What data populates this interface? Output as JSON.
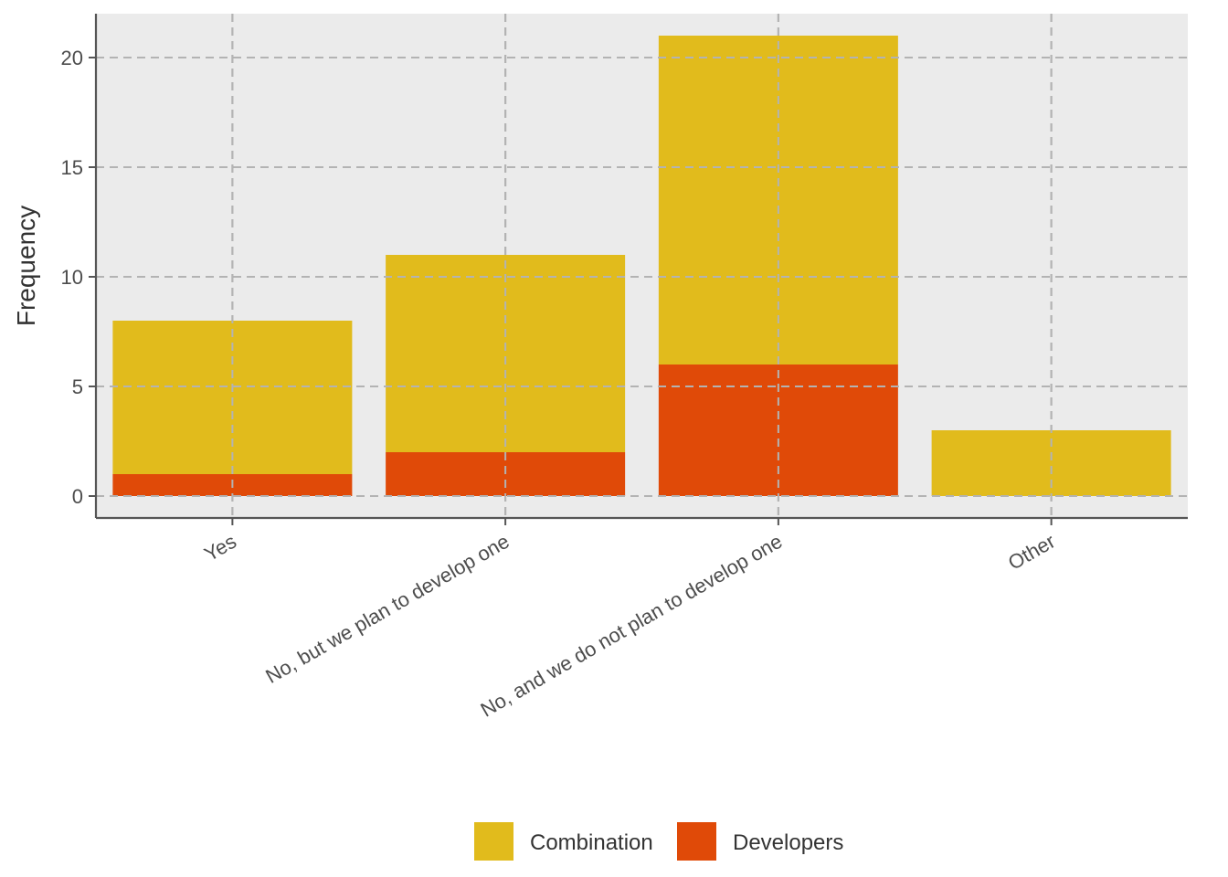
{
  "chart_data": {
    "type": "bar",
    "stacked": true,
    "categories": [
      "Yes",
      "No, but we plan to develop one",
      "No, and we do not plan to develop one",
      "Other"
    ],
    "series": [
      {
        "name": "Developers",
        "values": [
          1,
          2,
          6,
          0
        ],
        "color": "#E04A08"
      },
      {
        "name": "Combination",
        "values": [
          7,
          9,
          15,
          3
        ],
        "color": "#E1BB1C"
      }
    ],
    "title": "",
    "xlabel": "",
    "ylabel": "Frequency",
    "ylim": [
      -1,
      22
    ],
    "yticks": [
      0,
      5,
      10,
      15,
      20
    ],
    "grid": true,
    "legend": {
      "position": "bottom",
      "entries": [
        {
          "label": "Combination",
          "color": "#E1BB1C"
        },
        {
          "label": "Developers",
          "color": "#E04A08"
        }
      ]
    },
    "background": "#EBEBEB"
  }
}
